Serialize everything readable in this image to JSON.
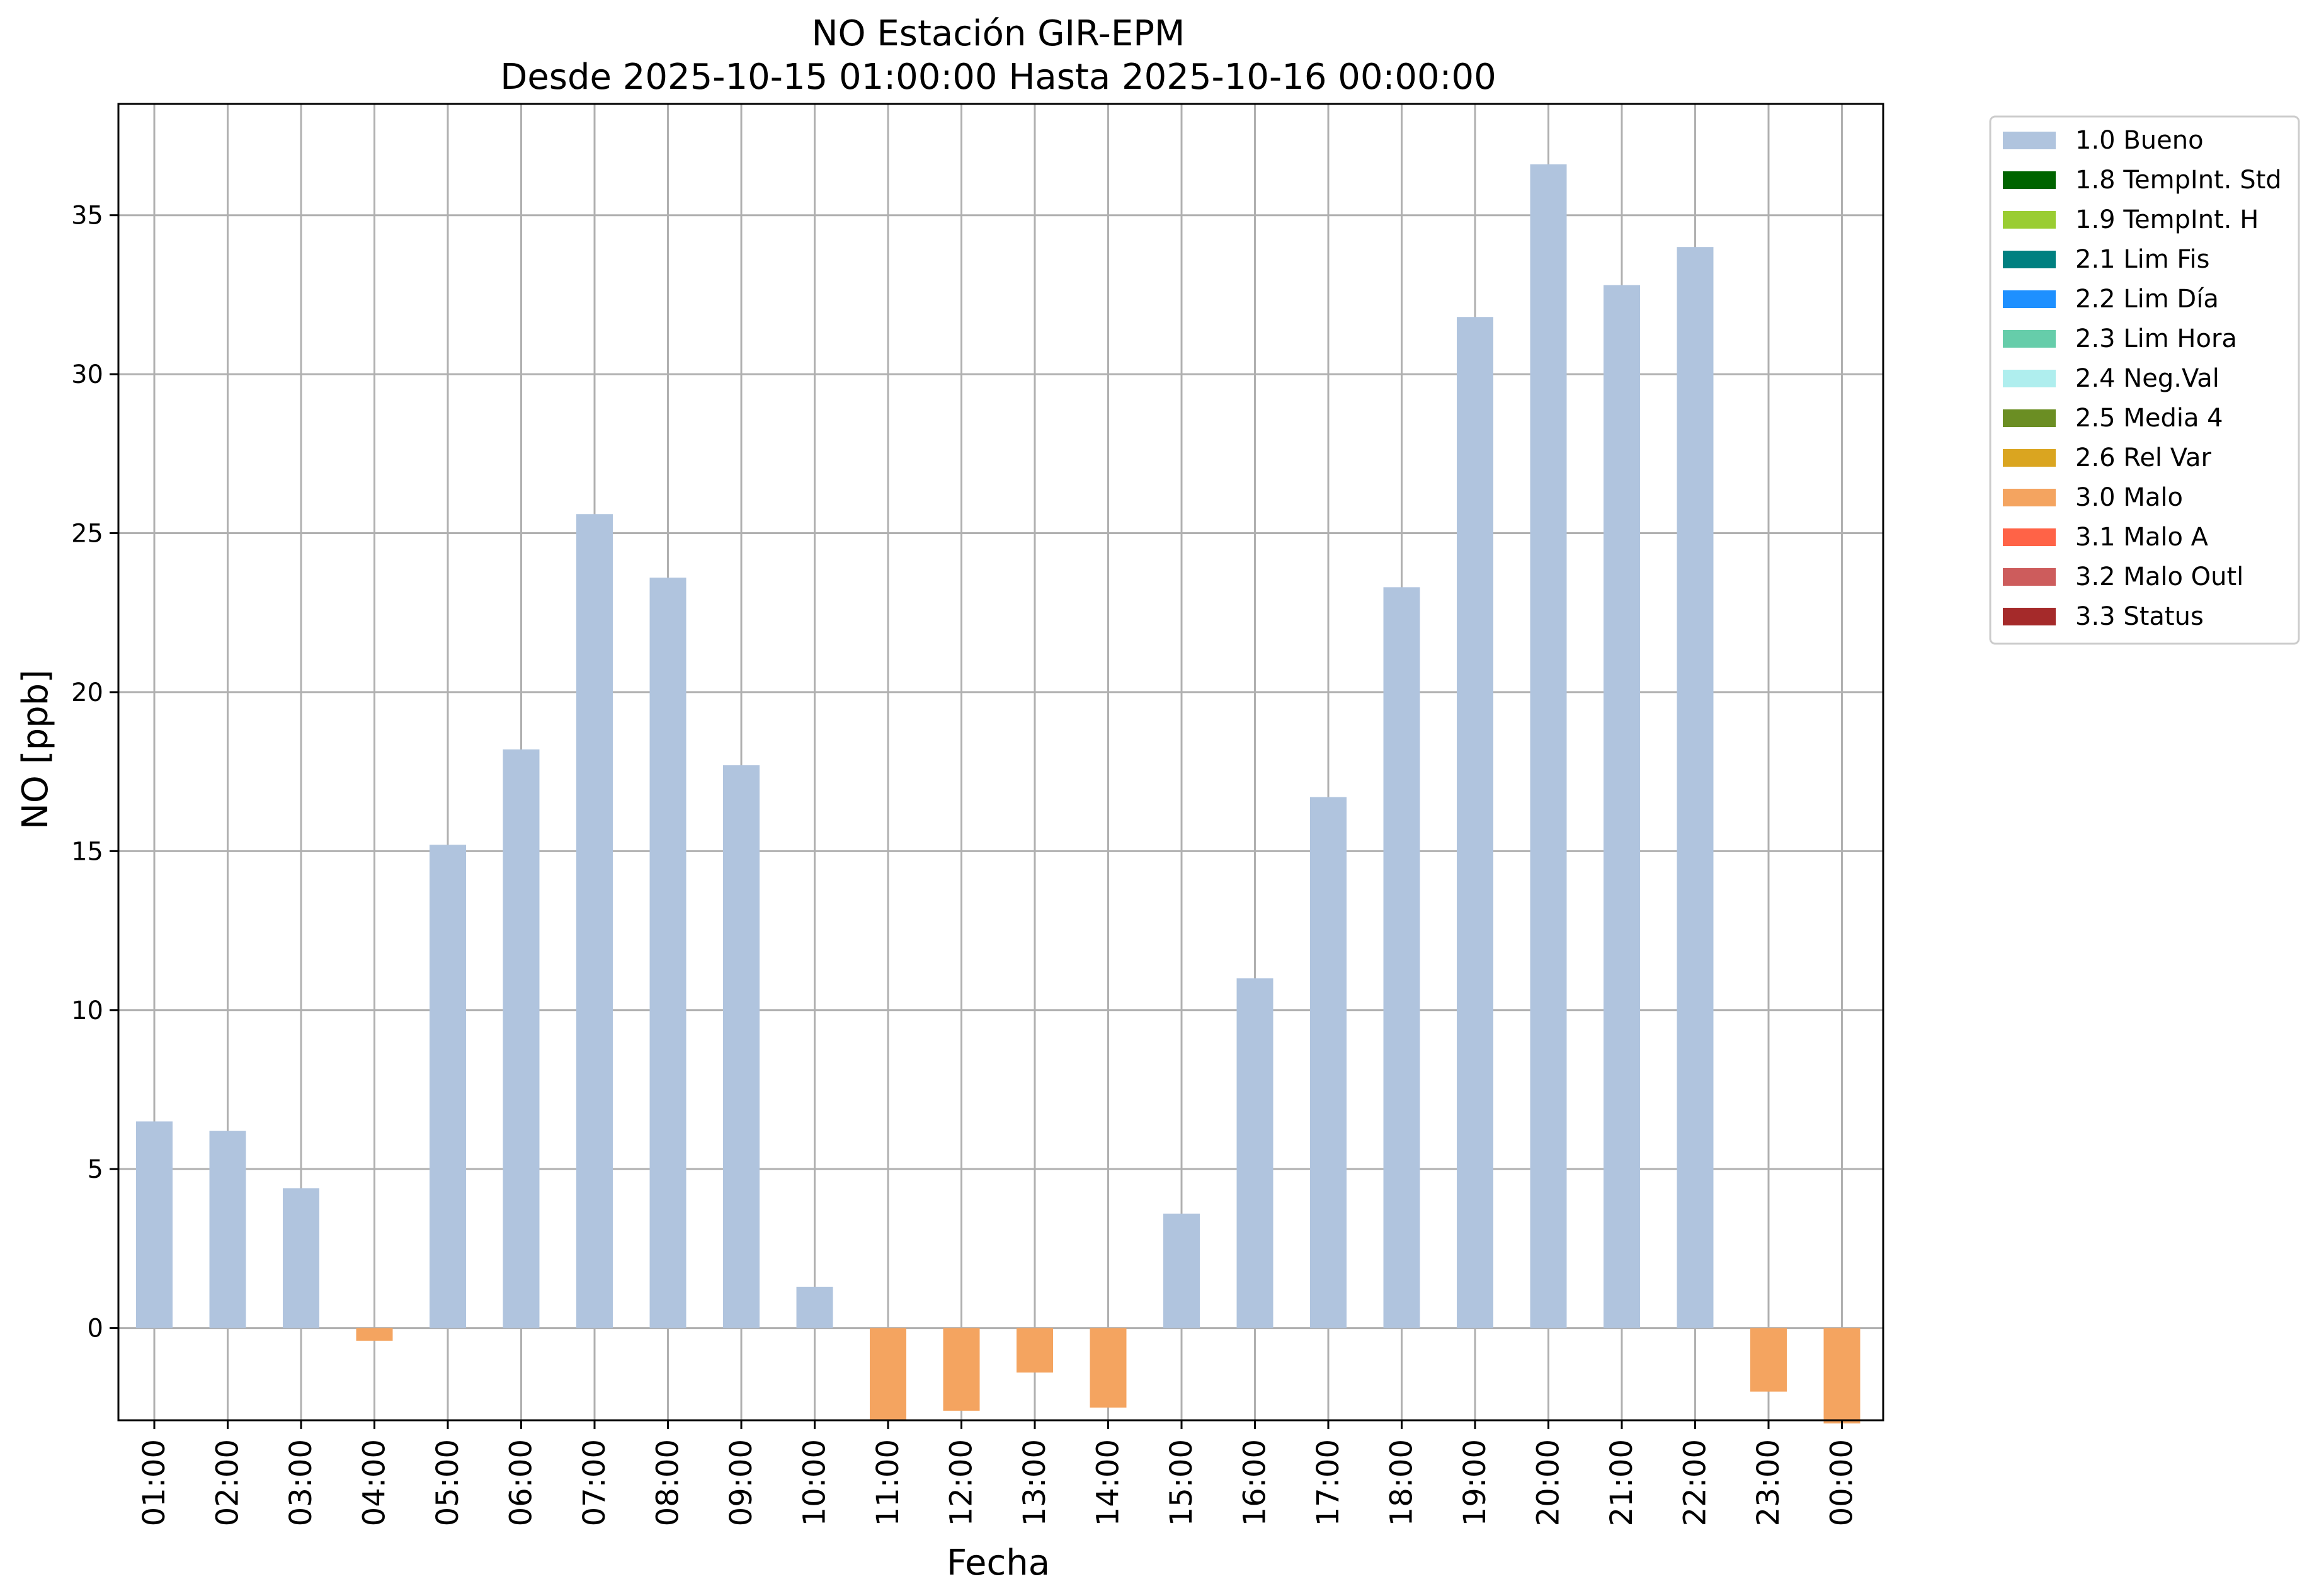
{
  "chart_data": {
    "type": "bar",
    "title": "NO Estación GIR-EPM",
    "subtitle": "Desde 2025-10-15 01:00:00 Hasta 2025-10-16 00:00:00",
    "xlabel": "Fecha",
    "ylabel": "NO [ppb]",
    "ylim": [
      -2.9,
      38.5
    ],
    "yticks": [
      0,
      5,
      10,
      15,
      20,
      25,
      30,
      35
    ],
    "grid": true,
    "legend_position": "outside-top-right",
    "categories": [
      "01:00",
      "02:00",
      "03:00",
      "04:00",
      "05:00",
      "06:00",
      "07:00",
      "08:00",
      "09:00",
      "10:00",
      "11:00",
      "12:00",
      "13:00",
      "14:00",
      "15:00",
      "16:00",
      "17:00",
      "18:00",
      "19:00",
      "20:00",
      "21:00",
      "22:00",
      "23:00",
      "00:00"
    ],
    "values": [
      6.5,
      6.2,
      4.4,
      -0.4,
      15.2,
      18.2,
      25.6,
      23.6,
      17.7,
      1.3,
      -2.9,
      -2.6,
      -1.4,
      -2.5,
      3.6,
      11.0,
      16.7,
      23.3,
      31.8,
      36.6,
      32.8,
      34.0,
      -2.0,
      -3.0
    ],
    "flags": [
      "1.0 Bueno",
      "1.0 Bueno",
      "1.0 Bueno",
      "3.0 Malo",
      "1.0 Bueno",
      "1.0 Bueno",
      "1.0 Bueno",
      "1.0 Bueno",
      "1.0 Bueno",
      "1.0 Bueno",
      "3.0 Malo",
      "3.0 Malo",
      "3.0 Malo",
      "3.0 Malo",
      "1.0 Bueno",
      "1.0 Bueno",
      "1.0 Bueno",
      "1.0 Bueno",
      "1.0 Bueno",
      "1.0 Bueno",
      "1.0 Bueno",
      "1.0 Bueno",
      "3.0 Malo",
      "3.0 Malo"
    ],
    "legend": [
      {
        "label": "1.0 Bueno",
        "color": "#b0c4de"
      },
      {
        "label": "1.8 TempInt. Std",
        "color": "#006400"
      },
      {
        "label": "1.9 TempInt. H",
        "color": "#9acd32"
      },
      {
        "label": "2.1 Lim Fis",
        "color": "#008080"
      },
      {
        "label": "2.2 Lim Día",
        "color": "#1e90ff"
      },
      {
        "label": "2.3 Lim Hora",
        "color": "#66cdaa"
      },
      {
        "label": "2.4 Neg.Val",
        "color": "#afeeee"
      },
      {
        "label": "2.5 Media 4",
        "color": "#6b8e23"
      },
      {
        "label": "2.6 Rel Var",
        "color": "#daa520"
      },
      {
        "label": "3.0 Malo",
        "color": "#f4a460"
      },
      {
        "label": "3.1 Malo A",
        "color": "#ff6347"
      },
      {
        "label": "3.2 Malo Outl",
        "color": "#cd5c5c"
      },
      {
        "label": "3.3 Status",
        "color": "#a52a2a"
      }
    ]
  }
}
